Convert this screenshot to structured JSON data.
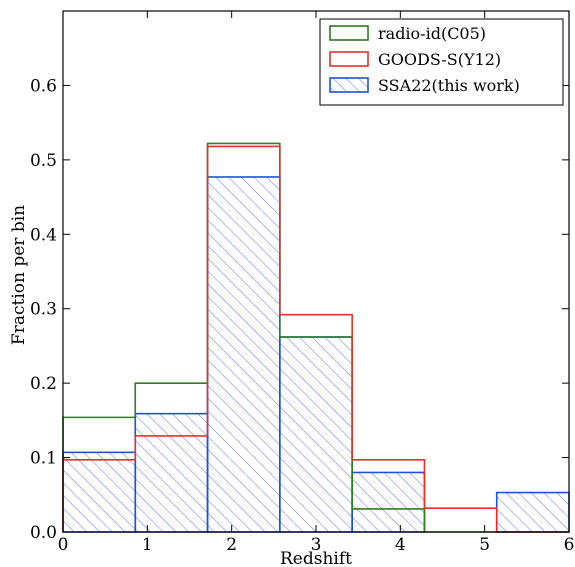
{
  "chart_data": {
    "type": "bar",
    "subtype": "step-histogram",
    "xlabel": "Redshift",
    "ylabel": "Fraction per bin",
    "xlim": [
      0,
      6
    ],
    "ylim": [
      0,
      0.7
    ],
    "x_ticks": [
      "0",
      "1",
      "2",
      "3",
      "4",
      "5",
      "6"
    ],
    "y_ticks": [
      "0.0",
      "0.1",
      "0.2",
      "0.3",
      "0.4",
      "0.5",
      "0.6"
    ],
    "bin_edges": [
      0,
      0.857,
      1.714,
      2.571,
      3.429,
      4.286,
      5.143,
      6.0
    ],
    "legend_position": "top-right",
    "series": [
      {
        "name": "radio-id(C05)",
        "style": "step",
        "color": "#2e7d1e",
        "values": [
          0.154,
          0.2,
          0.522,
          0.262,
          0.031,
          0.0,
          0.0
        ]
      },
      {
        "name": "GOODS-S(Y12)",
        "style": "step",
        "color": "#e8302a",
        "values": [
          0.097,
          0.129,
          0.518,
          0.292,
          0.097,
          0.032,
          0.0
        ]
      },
      {
        "name": "SSA22(this work)",
        "style": "hatched",
        "color": "#1f4fe0",
        "hatch_color": "#6b82e0",
        "values": [
          0.107,
          0.159,
          0.477,
          0.262,
          0.08,
          0.0,
          0.053
        ]
      }
    ]
  }
}
